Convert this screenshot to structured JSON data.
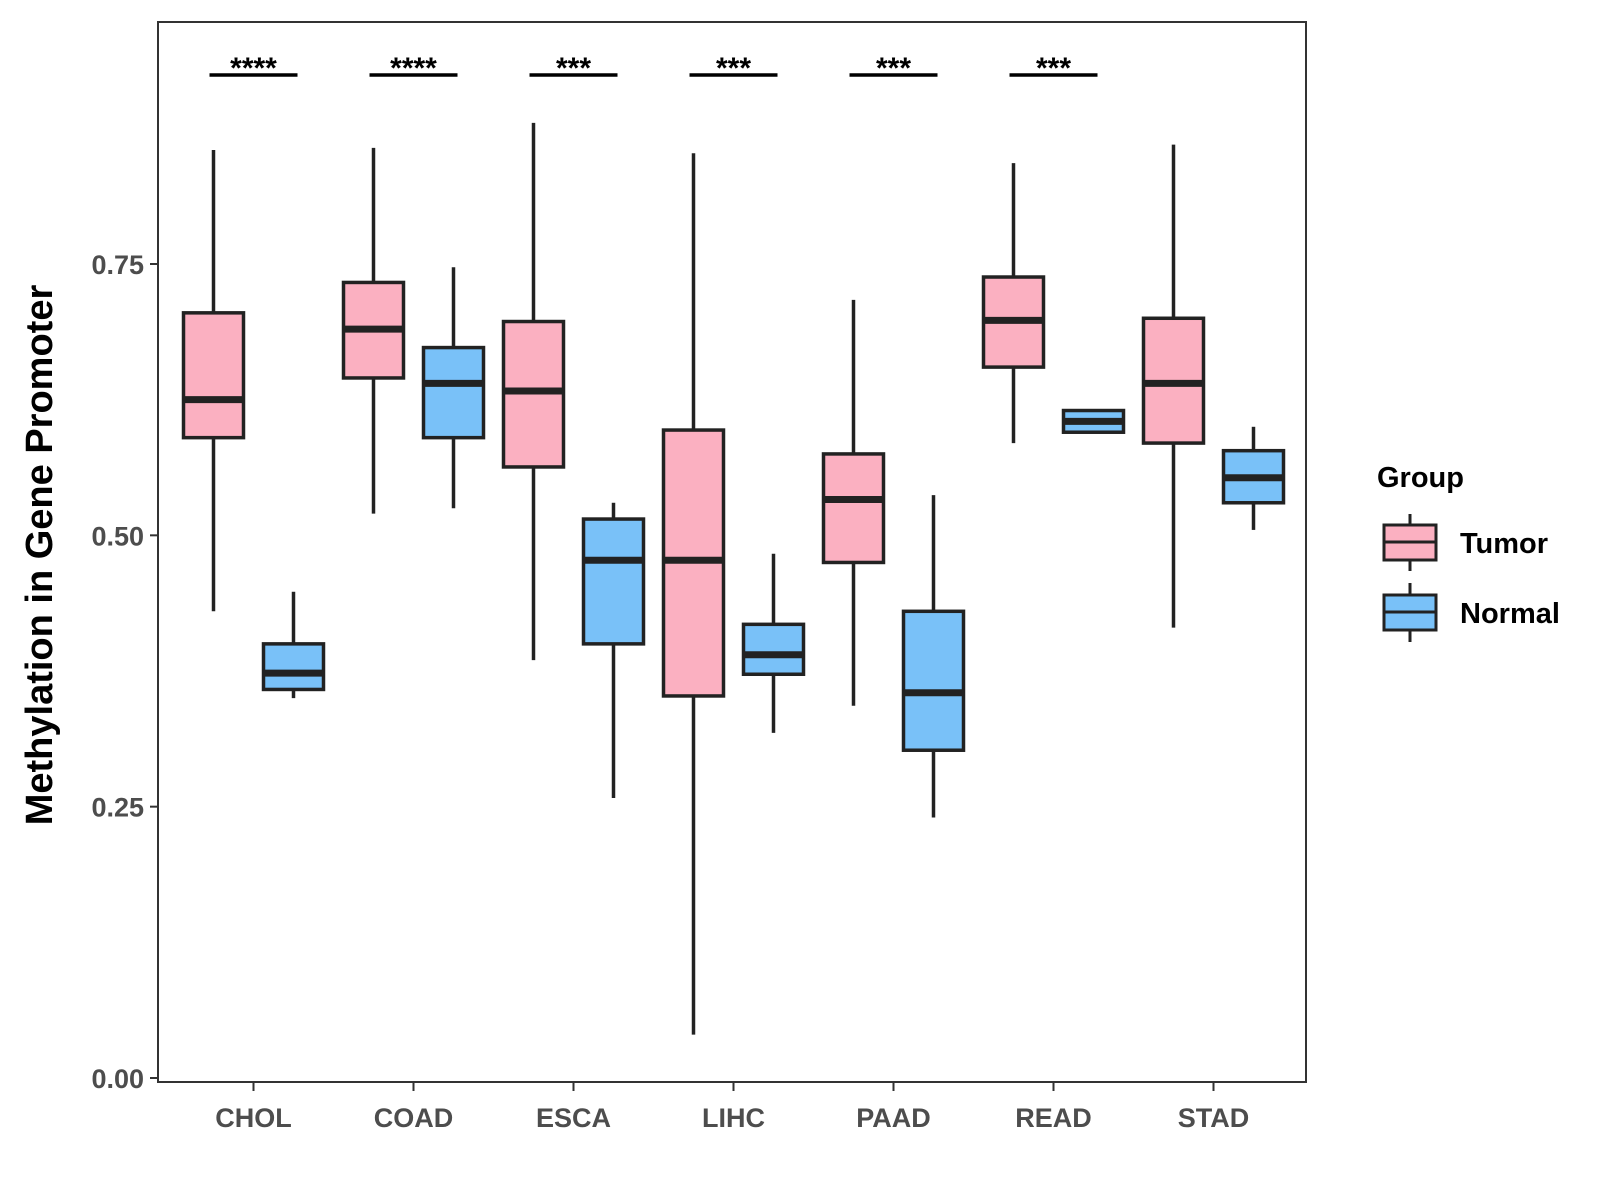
{
  "chart_data": {
    "type": "boxplot",
    "title": "",
    "xlabel": "",
    "ylabel": "Methylation in Gene Promoter",
    "ylim": [
      0.0,
      0.98
    ],
    "yticks": [
      0.0,
      0.25,
      0.5,
      0.75
    ],
    "ytick_labels": [
      "0.00",
      "0.25",
      "0.50",
      "0.75"
    ],
    "categories": [
      "CHOL",
      "COAD",
      "ESCA",
      "LIHC",
      "PAAD",
      "READ",
      "STAD"
    ],
    "legend": {
      "title": "Group",
      "position": "right",
      "entries": [
        {
          "name": "Tumor",
          "color": "#fbb0c1"
        },
        {
          "name": "Normal",
          "color": "#79c1f8"
        }
      ]
    },
    "series": [
      {
        "name": "Tumor",
        "color": "#fbb0c1",
        "boxes": [
          {
            "min": 0.43,
            "q1": 0.59,
            "median": 0.625,
            "q3": 0.705,
            "max": 0.855
          },
          {
            "min": 0.52,
            "q1": 0.645,
            "median": 0.69,
            "q3": 0.733,
            "max": 0.857
          },
          {
            "min": 0.385,
            "q1": 0.563,
            "median": 0.633,
            "q3": 0.697,
            "max": 0.88
          },
          {
            "min": 0.04,
            "q1": 0.352,
            "median": 0.477,
            "q3": 0.597,
            "max": 0.852
          },
          {
            "min": 0.343,
            "q1": 0.475,
            "median": 0.533,
            "q3": 0.575,
            "max": 0.717
          },
          {
            "min": 0.585,
            "q1": 0.655,
            "median": 0.698,
            "q3": 0.738,
            "max": 0.843
          },
          {
            "min": 0.415,
            "q1": 0.585,
            "median": 0.64,
            "q3": 0.7,
            "max": 0.86
          }
        ]
      },
      {
        "name": "Normal",
        "color": "#79c1f8",
        "boxes": [
          {
            "min": 0.35,
            "q1": 0.358,
            "median": 0.373,
            "q3": 0.4,
            "max": 0.448
          },
          {
            "min": 0.525,
            "q1": 0.59,
            "median": 0.64,
            "q3": 0.673,
            "max": 0.747
          },
          {
            "min": 0.258,
            "q1": 0.4,
            "median": 0.477,
            "q3": 0.515,
            "max": 0.53
          },
          {
            "min": 0.318,
            "q1": 0.372,
            "median": 0.39,
            "q3": 0.418,
            "max": 0.483
          },
          {
            "min": 0.24,
            "q1": 0.302,
            "median": 0.355,
            "q3": 0.43,
            "max": 0.537
          },
          {
            "min": 0.595,
            "q1": 0.595,
            "median": 0.605,
            "q3": 0.615,
            "max": 0.615
          },
          {
            "min": 0.505,
            "q1": 0.53,
            "median": 0.553,
            "q3": 0.578,
            "max": 0.6
          }
        ]
      }
    ],
    "significance": [
      "****",
      "****",
      "***",
      "***",
      "***",
      "***",
      ""
    ]
  }
}
